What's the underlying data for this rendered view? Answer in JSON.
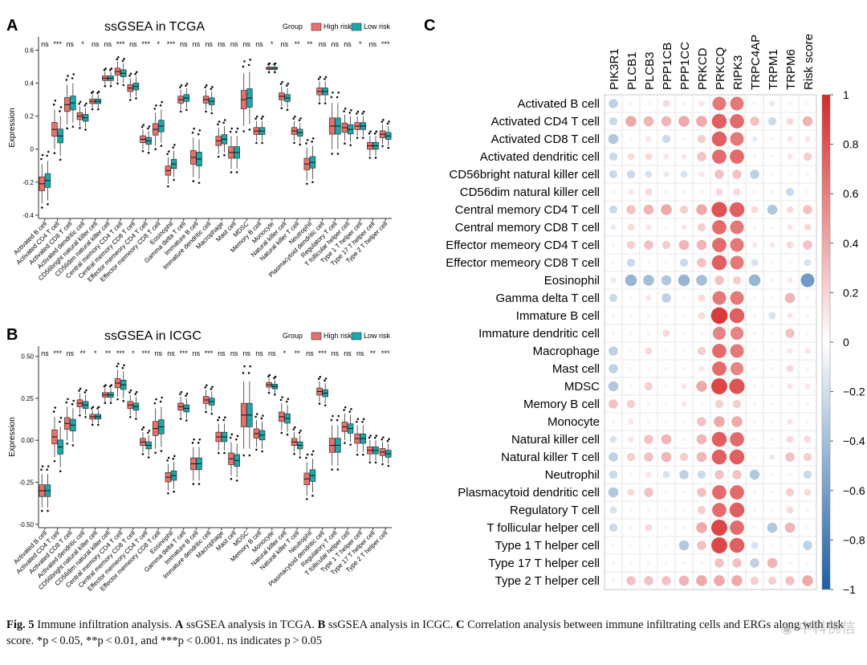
{
  "panels": {
    "a": {
      "label": "A",
      "title": "ssGSEA in TCGA",
      "ylabel": "Expression",
      "ylim": [
        -0.42,
        0.68
      ],
      "yticks": [
        -0.4,
        -0.2,
        0,
        0.2,
        0.4,
        0.6
      ],
      "ytick_labels": [
        "-0.4",
        "-0.2",
        "0",
        "0.2",
        "0.4",
        "0.6"
      ],
      "significance": [
        "ns",
        "***",
        "ns",
        "*",
        "ns",
        "ns",
        "***",
        "ns",
        "***",
        "*",
        "***",
        "ns",
        "ns",
        "ns",
        "ns",
        "ns",
        "ns",
        "ns",
        "*",
        "ns",
        "**",
        "**",
        "ns",
        "ns",
        "ns",
        "*",
        "ns",
        "***"
      ],
      "high_medians": [
        -0.21,
        0.12,
        0.27,
        0.2,
        0.29,
        0.43,
        0.47,
        0.37,
        0.06,
        0.12,
        -0.13,
        0.3,
        -0.05,
        0.3,
        0.05,
        -0.02,
        0.3,
        0.11,
        0.49,
        0.32,
        0.11,
        -0.09,
        0.35,
        0.14,
        0.13,
        0.14,
        0.02,
        0.09
      ],
      "low_medians": [
        -0.19,
        0.08,
        0.28,
        0.19,
        0.29,
        0.43,
        0.46,
        0.38,
        0.05,
        0.14,
        -0.09,
        0.31,
        -0.06,
        0.29,
        0.06,
        -0.02,
        0.31,
        0.11,
        0.49,
        0.31,
        0.1,
        -0.08,
        0.35,
        0.14,
        0.12,
        0.14,
        0.02,
        0.08
      ],
      "box_spread": [
        0.06,
        0.06,
        0.06,
        0.03,
        0.02,
        0.02,
        0.03,
        0.03,
        0.03,
        0.05,
        0.04,
        0.03,
        0.06,
        0.03,
        0.04,
        0.05,
        0.08,
        0.03,
        0.01,
        0.03,
        0.03,
        0.05,
        0.03,
        0.07,
        0.04,
        0.03,
        0.03,
        0.03
      ]
    },
    "b": {
      "label": "B",
      "title": "ssGSEA in ICGC",
      "ylabel": "Expression",
      "ylim": [
        -0.52,
        0.56
      ],
      "yticks": [
        -0.5,
        -0.25,
        0,
        0.25,
        0.5
      ],
      "ytick_labels": [
        "-0.50",
        "-0.25",
        "0.00",
        "0.25",
        "0.50"
      ],
      "significance": [
        "ns",
        "***",
        "ns",
        "**",
        "*",
        "**",
        "***",
        "*",
        "***",
        "ns",
        "ns",
        "***",
        "ns",
        "***",
        "ns",
        "ns",
        "ns",
        "ns",
        "ns",
        "*",
        "**",
        "ns",
        "***",
        "ns",
        "ns",
        "ns",
        "**",
        "***"
      ],
      "high_medians": [
        -0.3,
        0.02,
        0.1,
        0.22,
        0.14,
        0.27,
        0.34,
        0.21,
        -0.01,
        0.07,
        -0.22,
        0.2,
        -0.14,
        0.24,
        0.02,
        -0.11,
        0.15,
        0.04,
        0.33,
        0.14,
        -0.01,
        -0.23,
        0.29,
        -0.03,
        0.08,
        0.01,
        -0.06,
        -0.07
      ],
      "low_medians": [
        -0.3,
        -0.04,
        0.09,
        0.21,
        0.14,
        0.27,
        0.33,
        0.2,
        -0.03,
        0.08,
        -0.21,
        0.19,
        -0.14,
        0.23,
        0.02,
        -0.12,
        0.15,
        0.03,
        0.32,
        0.13,
        -0.03,
        -0.21,
        0.28,
        -0.03,
        0.07,
        0.01,
        -0.06,
        -0.08
      ],
      "box_spread": [
        0.05,
        0.06,
        0.05,
        0.03,
        0.02,
        0.02,
        0.04,
        0.03,
        0.03,
        0.06,
        0.04,
        0.03,
        0.05,
        0.03,
        0.04,
        0.05,
        0.1,
        0.04,
        0.02,
        0.04,
        0.03,
        0.05,
        0.03,
        0.06,
        0.04,
        0.04,
        0.03,
        0.03
      ]
    },
    "c": {
      "label": "C",
      "colorbar_ticks": [
        1,
        0.8,
        0.6,
        0.4,
        0.2,
        0,
        -0.2,
        -0.4,
        -0.6,
        -0.8,
        -1
      ],
      "colorbar_tick_labels": [
        "1",
        "0.8",
        "0.6",
        "0.4",
        "0.2",
        "0",
        "−0.2",
        "−0.4",
        "−0.6",
        "−0.8",
        "−1"
      ]
    }
  },
  "legend": {
    "title": "Group",
    "high_label": "High risk",
    "low_label": "Low risk",
    "high_color": "#e8716c",
    "low_color": "#1aa8ab"
  },
  "colors": {
    "positive": "#d6292a",
    "negative": "#1c5fa3",
    "grid": "#d5d5d5"
  },
  "caption": {
    "fig": "Fig. 5",
    "text1": " Immune infiltration analysis. ",
    "a": "A",
    "t_a": " ssGSEA analysis in TCGA. ",
    "b": "B",
    "t_b": " ssGSEA analysis in ICGC. ",
    "c": "C",
    "t_c": " Correlation analysis between immune infiltrating cells and ERGs along with risk score. *p < 0.05, **p < 0.01, and ***p < 0.001. ns indicates p > 0.05"
  },
  "watermark": "中科佛信",
  "chart_data": [
    {
      "type": "boxplot",
      "title": "ssGSEA in TCGA",
      "xlabel": "",
      "ylabel": "Expression",
      "ylim": [
        -0.42,
        0.68
      ],
      "categories": [
        "Activated B cell",
        "Activated CD4 T cell",
        "Activated CD8 T cell",
        "Activated dendritic cell",
        "CD56bright natural killer cell",
        "CD56dim natural killer cell",
        "Central memory CD4 T cell",
        "Central memory CD8 T cell",
        "Effector memeory CD4 T cell",
        "Effector memeory CD8 T cell",
        "Eosinophil",
        "Gamma delta T cell",
        "Immature B cell",
        "Immature dendritic cell",
        "Macrophage",
        "Mast cell",
        "MDSC",
        "Memory B cell",
        "Monocyte",
        "Natural killer cell",
        "Natural killer T cell",
        "Neutrophil",
        "Plasmacytoid dendritic cell",
        "Regulatory T cell",
        "T follicular helper cell",
        "Type 1 T helper cell",
        "Type 17 T helper cell",
        "Type 2 T helper cell"
      ],
      "series": [
        {
          "name": "High risk",
          "medians": [
            -0.21,
            0.12,
            0.27,
            0.2,
            0.29,
            0.43,
            0.47,
            0.37,
            0.06,
            0.12,
            -0.13,
            0.3,
            -0.05,
            0.3,
            0.05,
            -0.02,
            0.3,
            0.11,
            0.49,
            0.32,
            0.11,
            -0.09,
            0.35,
            0.14,
            0.13,
            0.14,
            0.02,
            0.09
          ]
        },
        {
          "name": "Low risk",
          "medians": [
            -0.19,
            0.08,
            0.28,
            0.19,
            0.29,
            0.43,
            0.46,
            0.38,
            0.05,
            0.14,
            -0.09,
            0.31,
            -0.06,
            0.29,
            0.06,
            -0.02,
            0.31,
            0.11,
            0.49,
            0.31,
            0.1,
            -0.08,
            0.35,
            0.14,
            0.12,
            0.14,
            0.02,
            0.08
          ]
        }
      ],
      "annotations": [
        "ns",
        "***",
        "ns",
        "*",
        "ns",
        "ns",
        "***",
        "ns",
        "***",
        "*",
        "***",
        "ns",
        "ns",
        "ns",
        "ns",
        "ns",
        "ns",
        "ns",
        "*",
        "ns",
        "**",
        "**",
        "ns",
        "ns",
        "ns",
        "*",
        "ns",
        "***"
      ],
      "legend": "top-right"
    },
    {
      "type": "boxplot",
      "title": "ssGSEA in ICGC",
      "xlabel": "",
      "ylabel": "Expression",
      "ylim": [
        -0.52,
        0.56
      ],
      "categories": [
        "Activated B cell",
        "Activated CD4 T cell",
        "Activated CD8 T cell",
        "Activated dendritic cell",
        "CD56bright natural killer cell",
        "CD56dim natural killer cell",
        "Central memory CD4 T cell",
        "Central memory CD8 T cell",
        "Effector memeory CD4 T cell",
        "Effector memeory CD8 T cell",
        "Eosinophil",
        "Gamma delta T cell",
        "Immature B cell",
        "Immature dendritic cell",
        "Macrophage",
        "Mast cell",
        "MDSC",
        "Memory B cell",
        "Monocyte",
        "Natural killer cell",
        "Natural killer T cell",
        "Neutrophil",
        "Plasmacytoid dendritic cell",
        "Regulatory T cell",
        "T follicular helper cell",
        "Type 1 T helper cell",
        "Type 17 T helper cell",
        "Type 2 T helper cell"
      ],
      "series": [
        {
          "name": "High risk",
          "medians": [
            -0.3,
            0.02,
            0.1,
            0.22,
            0.14,
            0.27,
            0.34,
            0.21,
            -0.01,
            0.07,
            -0.22,
            0.2,
            -0.14,
            0.24,
            0.02,
            -0.11,
            0.15,
            0.04,
            0.33,
            0.14,
            -0.01,
            -0.23,
            0.29,
            -0.03,
            0.08,
            0.01,
            -0.06,
            -0.07
          ]
        },
        {
          "name": "Low risk",
          "medians": [
            -0.3,
            -0.04,
            0.09,
            0.21,
            0.14,
            0.27,
            0.33,
            0.2,
            -0.03,
            0.08,
            -0.21,
            0.19,
            -0.14,
            0.23,
            0.02,
            -0.12,
            0.15,
            0.03,
            0.32,
            0.13,
            -0.03,
            -0.21,
            0.28,
            -0.03,
            0.07,
            0.01,
            -0.06,
            -0.08
          ]
        }
      ],
      "annotations": [
        "ns",
        "***",
        "ns",
        "**",
        "*",
        "**",
        "***",
        "*",
        "***",
        "ns",
        "ns",
        "***",
        "ns",
        "***",
        "ns",
        "ns",
        "ns",
        "ns",
        "ns",
        "*",
        "**",
        "ns",
        "***",
        "ns",
        "ns",
        "ns",
        "**",
        "***"
      ],
      "legend": "top-right"
    },
    {
      "type": "heatmap",
      "subtype": "correlation-dotplot",
      "columns": [
        "PIK3R1",
        "PLCB1",
        "PLCB3",
        "PPP1CB",
        "PPP1CC",
        "PRKCD",
        "PRKCQ",
        "RIPK3",
        "TRPC4AP",
        "TRPM1",
        "TRPM6",
        "Risk score"
      ],
      "rows": [
        "Activated B cell",
        "Activated CD4 T cell",
        "Activated CD8 T cell",
        "Activated dendritic cell",
        "CD56bright natural killer cell",
        "CD56dim natural killer cell",
        "Central memory CD4 T cell",
        "Central memory CD8 T cell",
        "Effector memeory CD4 T cell",
        "Effector memeory CD8 T cell",
        "Eosinophil",
        "Gamma delta T cell",
        "Immature  B cell",
        "Immature dendritic cell",
        "Macrophage",
        "Mast cell",
        "MDSC",
        "Memory B cell",
        "Monocyte",
        "Natural killer cell",
        "Natural killer T cell",
        "Neutrophil",
        "Plasmacytoid dendritic cell",
        "Regulatory T cell",
        "T follicular helper cell",
        "Type 1 T helper cell",
        "Type 17 T helper cell",
        "Type 2 T helper cell"
      ],
      "values": [
        [
          -0.25,
          0.05,
          0.05,
          0.15,
          0.05,
          0.1,
          0.55,
          0.55,
          0.05,
          -0.1,
          0.05,
          0.05
        ],
        [
          -0.2,
          0.35,
          0.3,
          0.3,
          0.35,
          0.35,
          0.65,
          0.6,
          0.25,
          -0.2,
          0.15,
          0.3
        ],
        [
          -0.3,
          0.05,
          0.1,
          -0.2,
          0.05,
          0.2,
          0.65,
          0.55,
          -0.1,
          0.05,
          0.1,
          0.1
        ],
        [
          -0.2,
          0.15,
          0.15,
          0.1,
          0.1,
          0.25,
          0.6,
          0.6,
          0.05,
          0.05,
          0.1,
          0.2
        ],
        [
          -0.2,
          -0.2,
          -0.15,
          -0.1,
          -0.15,
          0.1,
          0.25,
          0.25,
          -0.25,
          -0.05,
          0.05,
          0.05
        ],
        [
          0.05,
          0.1,
          0.15,
          0.05,
          0.05,
          0.05,
          0.15,
          0.15,
          0.05,
          0.05,
          -0.2,
          0.05
        ],
        [
          -0.2,
          0.25,
          0.3,
          0.35,
          0.2,
          0.35,
          0.7,
          0.65,
          0.15,
          -0.3,
          0.15,
          0.25
        ],
        [
          -0.1,
          0.15,
          0.1,
          0.05,
          0.1,
          0.2,
          0.6,
          0.55,
          0.05,
          0.05,
          0.1,
          0.15
        ],
        [
          0.05,
          0.2,
          0.25,
          0.2,
          0.3,
          0.3,
          0.6,
          0.55,
          0.1,
          0.1,
          0.15,
          0.25
        ],
        [
          0.05,
          -0.2,
          0.05,
          0.05,
          -0.2,
          0.25,
          0.65,
          0.55,
          -0.15,
          0.05,
          0.05,
          -0.15
        ],
        [
          -0.1,
          -0.4,
          -0.35,
          -0.3,
          -0.4,
          -0.35,
          0.25,
          0.2,
          -0.4,
          0.05,
          0.1,
          -0.55
        ],
        [
          -0.2,
          0.05,
          0.1,
          -0.25,
          0.05,
          0.15,
          0.55,
          0.55,
          0.05,
          0.05,
          0.3,
          0.05
        ],
        [
          0.05,
          0.05,
          0.05,
          0.05,
          0.05,
          0.15,
          0.8,
          0.65,
          0.05,
          -0.15,
          0.1,
          0.05
        ],
        [
          0.05,
          0.05,
          0.05,
          0.15,
          0.05,
          0.05,
          0.5,
          0.5,
          0.05,
          0.05,
          0.25,
          0.05
        ],
        [
          -0.25,
          0.05,
          0.15,
          0.05,
          0.05,
          0.2,
          0.6,
          0.55,
          0.05,
          0.05,
          0.1,
          0.1
        ],
        [
          -0.25,
          0.05,
          0.05,
          0.05,
          0.05,
          0.1,
          0.6,
          0.5,
          0.05,
          0.05,
          0.15,
          0.05
        ],
        [
          -0.3,
          0.05,
          0.2,
          0.05,
          0.1,
          0.35,
          0.75,
          0.7,
          0.05,
          0.05,
          0.1,
          0.1
        ],
        [
          0.25,
          0.2,
          0.05,
          0.05,
          0.1,
          0.05,
          0.2,
          0.2,
          0.05,
          0.05,
          0.05,
          0.05
        ],
        [
          0.05,
          0.1,
          0.05,
          0.05,
          0.05,
          0.25,
          0.35,
          0.35,
          0.05,
          0.05,
          0.1,
          0.05
        ],
        [
          -0.15,
          0.1,
          0.25,
          0.3,
          0.05,
          0.3,
          0.65,
          0.6,
          0.05,
          0.05,
          0.15,
          0.15
        ],
        [
          -0.25,
          0.2,
          0.25,
          0.3,
          0.2,
          0.3,
          0.65,
          0.65,
          0.05,
          -0.1,
          0.25,
          0.2
        ],
        [
          -0.2,
          -0.05,
          0.1,
          -0.15,
          -0.25,
          -0.2,
          0.25,
          0.25,
          -0.3,
          0.05,
          0.05,
          -0.2
        ],
        [
          -0.3,
          0.15,
          0.25,
          0.05,
          0.05,
          0.25,
          0.6,
          0.6,
          0.05,
          0.05,
          0.2,
          0.15
        ],
        [
          -0.15,
          0.05,
          0.05,
          0.05,
          0.05,
          0.2,
          0.6,
          0.65,
          0.05,
          0.05,
          0.15,
          0.05
        ],
        [
          -0.2,
          0.05,
          0.15,
          0.05,
          0.05,
          0.35,
          0.75,
          0.6,
          0.05,
          -0.3,
          0.3,
          0.05
        ],
        [
          0.05,
          0.05,
          0.05,
          0.05,
          -0.3,
          0.25,
          0.75,
          0.65,
          -0.15,
          0.05,
          0.05,
          -0.25
        ],
        [
          0.05,
          0.05,
          0.05,
          0.05,
          0.05,
          0.05,
          0.25,
          0.25,
          -0.25,
          0.3,
          0.05,
          0.05
        ],
        [
          0.05,
          0.25,
          0.25,
          0.25,
          0.3,
          0.35,
          0.35,
          0.35,
          0.2,
          0.2,
          0.25,
          0.35
        ]
      ],
      "colorbar_range": [
        -1,
        1
      ]
    }
  ]
}
